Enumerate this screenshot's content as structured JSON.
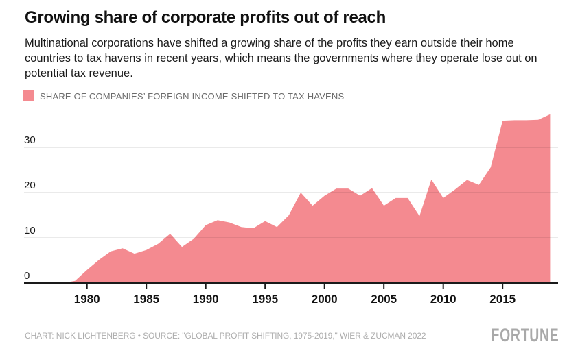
{
  "header": {
    "title": "Growing share of corporate profits out of reach",
    "subtitle": "Multinational corporations have shifted a growing share of the profits they earn outside their home countries to tax havens in recent years, which means the governments where they operate lose out on potential tax revenue."
  },
  "legend": {
    "label": "SHARE OF COMPANIES’ FOREIGN INCOME SHIFTED TO TAX HAVENS"
  },
  "footer": {
    "credit": "CHART: NICK LICHTENBERG • SOURCE: \"GLOBAL PROFIT SHIFTING, 1975-2019,\" WIER & ZUCMAN 2022",
    "brand": "FORTUNE"
  },
  "colors": {
    "area": "#F48A90",
    "gridline_over": "rgba(0,0,0,0.16)",
    "axis": "#1A1A1A",
    "tick_label": "#111111",
    "y_label": "#1A1A1A",
    "legend_text": "#6B6B6B",
    "footer_text": "#ADADAD",
    "brand_gray": "#A9A9A9"
  },
  "chart_data": {
    "type": "area",
    "title": "Share of companies' foreign income shifted to tax havens",
    "xlabel": "",
    "ylabel": "",
    "grid": "horizontal",
    "legend_position": "top-left",
    "ylim": [
      0,
      37.5
    ],
    "yticks": [
      0,
      10,
      20,
      30
    ],
    "xticks": [
      1980,
      1985,
      1990,
      1995,
      2000,
      2005,
      2010,
      2015
    ],
    "x": [
      1975,
      1976,
      1977,
      1978,
      1979,
      1980,
      1981,
      1982,
      1983,
      1984,
      1985,
      1986,
      1987,
      1988,
      1989,
      1990,
      1991,
      1992,
      1993,
      1994,
      1995,
      1996,
      1997,
      1998,
      1999,
      2000,
      2001,
      2002,
      2003,
      2004,
      2005,
      2006,
      2007,
      2008,
      2009,
      2010,
      2011,
      2012,
      2013,
      2014,
      2015,
      2016,
      2017,
      2018,
      2019
    ],
    "values": [
      0,
      0,
      0,
      0,
      0.5,
      2.9,
      5.1,
      7.0,
      7.7,
      6.5,
      7.3,
      8.7,
      10.9,
      8.0,
      9.8,
      12.8,
      13.9,
      13.4,
      12.4,
      12.1,
      13.7,
      12.4,
      15.0,
      20.0,
      17.1,
      19.3,
      20.9,
      20.9,
      19.3,
      21.0,
      17.1,
      18.8,
      18.8,
      14.8,
      22.9,
      18.8,
      20.7,
      22.8,
      21.7,
      25.6,
      35.9,
      36.0,
      36.0,
      36.1,
      37.3
    ]
  }
}
